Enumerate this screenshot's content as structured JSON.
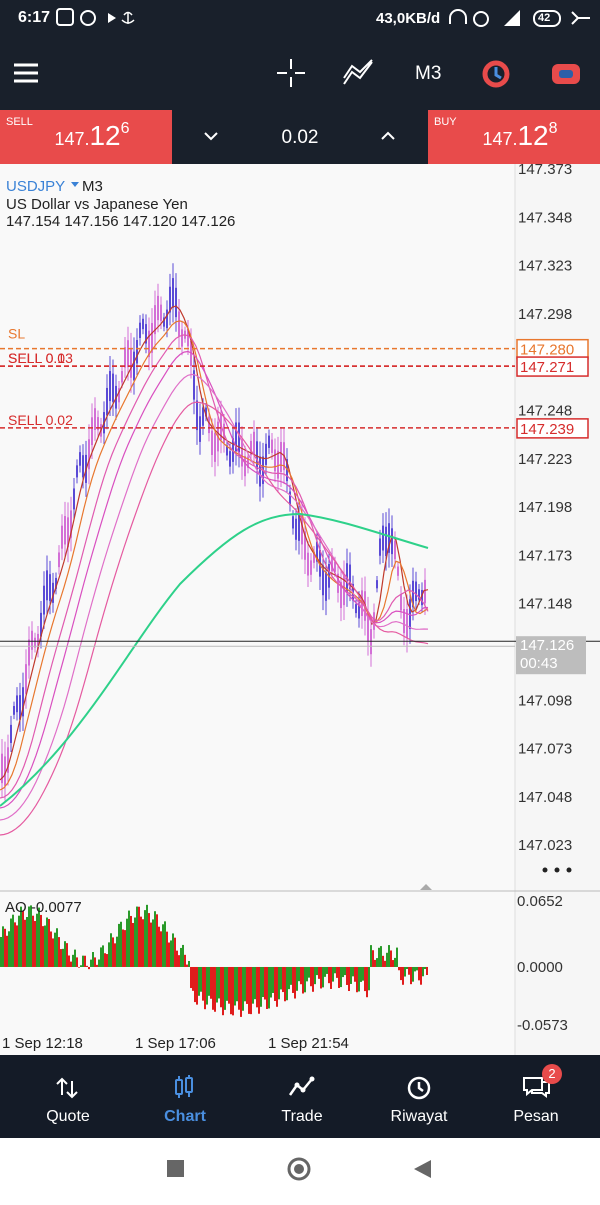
{
  "status_bar": {
    "time": "6:17",
    "speed": "43,0KB/d",
    "battery": "42"
  },
  "toolbar": {
    "timeframe": "M3"
  },
  "trade_panel": {
    "sell": {
      "label": "SELL",
      "small": "147.",
      "big": "12",
      "sup": "6"
    },
    "lot": "0.02",
    "buy": {
      "label": "BUY",
      "small": "147.",
      "big": "12",
      "sup": "8"
    }
  },
  "chart": {
    "symbol": "USDJPY",
    "timeframe": "M3",
    "description": "US Dollar vs Japanese Yen",
    "ohlc": "147.154 147.156 147.120 147.126",
    "price_axis": [
      "147.373",
      "147.348",
      "147.323",
      "147.298",
      "147.248",
      "147.223",
      "147.198",
      "147.173",
      "147.148",
      "147.098",
      "147.073",
      "147.048",
      "147.023"
    ],
    "levels": [
      {
        "label": "SL",
        "value": "147.280",
        "color": "#e8772e"
      },
      {
        "label": "SELL 0.1",
        "value": "147.271",
        "color": "#d62c2c"
      },
      {
        "label": "SELL 0.03",
        "value": "147.271",
        "color": "#d62c2c"
      },
      {
        "label": "SELL 0.02",
        "value": "147.239",
        "color": "#d62c2c"
      }
    ],
    "current": {
      "price": "147.126",
      "timer": "00:43"
    },
    "indicator": {
      "label": "AO -0.0077",
      "axis": [
        "0.0652",
        "0.0000",
        "-0.0573"
      ]
    },
    "time_axis": [
      "1 Sep 12:18",
      "1 Sep 17:06",
      "1 Sep 21:54"
    ]
  },
  "nav": {
    "items": [
      "Quote",
      "Chart",
      "Trade",
      "Riwayat",
      "Pesan"
    ],
    "badge": "2"
  }
}
